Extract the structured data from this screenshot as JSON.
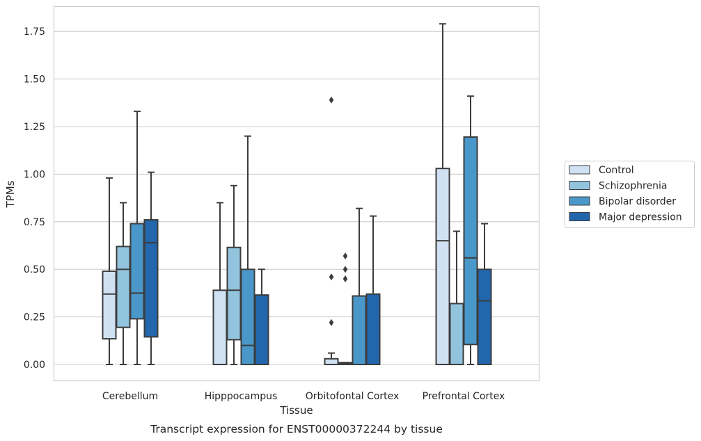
{
  "caption": "Transcript expression for ENST00000372244 by tissue",
  "chart_data": {
    "type": "box",
    "xlabel": "Tissue",
    "ylabel": "TPMs",
    "ylim": [
      -0.08,
      1.88
    ],
    "yticks": [
      0.0,
      0.25,
      0.5,
      0.75,
      1.0,
      1.25,
      1.5,
      1.75
    ],
    "ytick_labels": [
      "0.00",
      "0.25",
      "0.50",
      "0.75",
      "1.00",
      "1.25",
      "1.50",
      "1.75"
    ],
    "grid": "horizontal",
    "legend_position": "right",
    "categories": [
      "Cerebellum",
      "Hipppocampus",
      "Orbitofontal Cortex",
      "Prefrontal Cortex"
    ],
    "series": [
      {
        "name": "Control",
        "color": "#cfe1f2",
        "boxes": [
          {
            "whislo": 0.0,
            "q1": 0.135,
            "median": 0.37,
            "q3": 0.49,
            "whishi": 0.98,
            "fliers": []
          },
          {
            "whislo": 0.0,
            "q1": 0.0,
            "median": 0.0,
            "q3": 0.39,
            "whishi": 0.85,
            "fliers": []
          },
          {
            "whislo": 0.0,
            "q1": 0.0,
            "median": 0.0,
            "q3": 0.03,
            "whishi": 0.06,
            "fliers": [
              0.22,
              0.46,
              1.39
            ]
          },
          {
            "whislo": 0.0,
            "q1": 0.0,
            "median": 0.65,
            "q3": 1.03,
            "whishi": 1.79,
            "fliers": []
          }
        ]
      },
      {
        "name": "Schizophrenia",
        "color": "#93c4de",
        "boxes": [
          {
            "whislo": 0.0,
            "q1": 0.195,
            "median": 0.5,
            "q3": 0.62,
            "whishi": 0.85,
            "fliers": []
          },
          {
            "whislo": 0.0,
            "q1": 0.13,
            "median": 0.39,
            "q3": 0.615,
            "whishi": 0.94,
            "fliers": []
          },
          {
            "whislo": 0.0,
            "q1": 0.0,
            "median": 0.005,
            "q3": 0.01,
            "whishi": 0.01,
            "fliers": [
              0.45,
              0.5,
              0.57
            ]
          },
          {
            "whislo": 0.0,
            "q1": 0.0,
            "median": 0.0,
            "q3": 0.32,
            "whishi": 0.7,
            "fliers": []
          }
        ]
      },
      {
        "name": "Bipolar disorder",
        "color": "#4a98c9",
        "boxes": [
          {
            "whislo": 0.0,
            "q1": 0.24,
            "median": 0.375,
            "q3": 0.74,
            "whishi": 1.33,
            "fliers": []
          },
          {
            "whislo": 0.0,
            "q1": 0.0,
            "median": 0.1,
            "q3": 0.5,
            "whishi": 1.2,
            "fliers": []
          },
          {
            "whislo": 0.0,
            "q1": 0.0,
            "median": 0.0,
            "q3": 0.36,
            "whishi": 0.82,
            "fliers": []
          },
          {
            "whislo": 0.0,
            "q1": 0.105,
            "median": 0.56,
            "q3": 1.195,
            "whishi": 1.41,
            "fliers": []
          }
        ]
      },
      {
        "name": "Major depression",
        "color": "#2266ac",
        "boxes": [
          {
            "whislo": 0.0,
            "q1": 0.145,
            "median": 0.64,
            "q3": 0.76,
            "whishi": 1.01,
            "fliers": []
          },
          {
            "whislo": 0.0,
            "q1": 0.0,
            "median": 0.0,
            "q3": 0.365,
            "whishi": 0.5,
            "fliers": []
          },
          {
            "whislo": 0.0,
            "q1": 0.0,
            "median": 0.0,
            "q3": 0.37,
            "whishi": 0.78,
            "fliers": []
          },
          {
            "whislo": 0.0,
            "q1": 0.0,
            "median": 0.335,
            "q3": 0.5,
            "whishi": 0.74,
            "fliers": []
          }
        ]
      }
    ]
  }
}
